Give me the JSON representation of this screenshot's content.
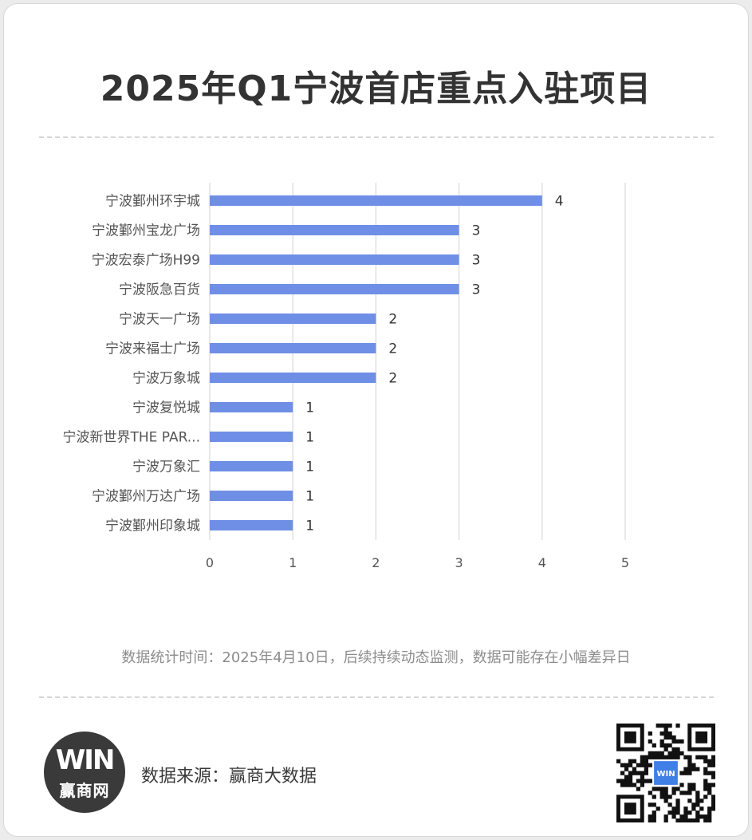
{
  "title": "2025年Q1宁波首店重点入驻项目",
  "note": "数据统计时间：2025年4月10日，后续持续动态监测，数据可能存在小幅差异日",
  "source": "数据来源：赢商大数据",
  "logo": {
    "mark": "WIN",
    "text": "赢商网"
  },
  "qr": {
    "icon": "qr-code-icon",
    "center_text": "WIN"
  },
  "colors": {
    "bar": "#6f8fe6",
    "grid": "#d9d9d9",
    "text": "#555555"
  },
  "chart_data": {
    "type": "bar",
    "orientation": "horizontal",
    "categories": [
      "宁波鄞州环宇城",
      "宁波鄞州宝龙广场",
      "宁波宏泰广场H99",
      "宁波阪急百货",
      "宁波天一广场",
      "宁波来福士广场",
      "宁波万象城",
      "宁波复悦城",
      "宁波新世界THE PAR...",
      "宁波万象汇",
      "宁波鄞州万达广场",
      "宁波鄞州印象城"
    ],
    "values": [
      4,
      3,
      3,
      3,
      2,
      2,
      2,
      1,
      1,
      1,
      1,
      1
    ],
    "xlim": [
      0,
      5
    ],
    "xticks": [
      "0",
      "1",
      "2",
      "3",
      "4",
      "5"
    ],
    "data_labels": true,
    "grid": true,
    "title": "",
    "xlabel": "",
    "ylabel": ""
  }
}
